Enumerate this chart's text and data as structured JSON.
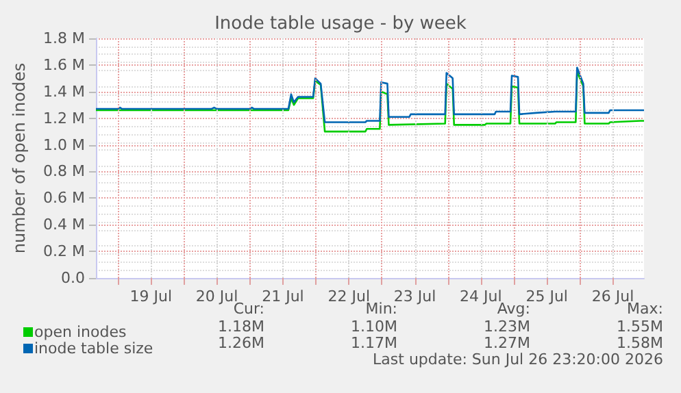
{
  "chart_data": {
    "type": "line",
    "title": "Inode table usage - by week",
    "ylabel": "number of open inodes",
    "xlim": [
      "2026-07-18T16:00",
      "2026-07-26T23:20"
    ],
    "xticks": [
      {
        "value": "2026-07-19T12:00",
        "label": "19 Jul"
      },
      {
        "value": "2026-07-20T12:00",
        "label": "20 Jul"
      },
      {
        "value": "2026-07-21T12:00",
        "label": "21 Jul"
      },
      {
        "value": "2026-07-22T12:00",
        "label": "22 Jul"
      },
      {
        "value": "2026-07-23T12:00",
        "label": "23 Jul"
      },
      {
        "value": "2026-07-24T12:00",
        "label": "24 Jul"
      },
      {
        "value": "2026-07-25T12:00",
        "label": "25 Jul"
      },
      {
        "value": "2026-07-26T12:00",
        "label": "26 Jul"
      },
      {
        "value": "2026-07-19T00:00",
        "label": null
      },
      {
        "value": "2026-07-20T00:00",
        "label": null
      },
      {
        "value": "2026-07-21T00:00",
        "label": null
      },
      {
        "value": "2026-07-22T00:00",
        "label": null
      },
      {
        "value": "2026-07-23T00:00",
        "label": null
      },
      {
        "value": "2026-07-24T00:00",
        "label": null
      },
      {
        "value": "2026-07-25T00:00",
        "label": null
      },
      {
        "value": "2026-07-26T00:00",
        "label": null
      }
    ],
    "ylim": [
      0,
      1.8
    ],
    "yticks": [
      {
        "value": 0,
        "label": "0.0"
      },
      {
        "value": 0.2,
        "label": "0.2 M"
      },
      {
        "value": 0.4,
        "label": "0.4 M"
      },
      {
        "value": 0.6,
        "label": "0.6 M"
      },
      {
        "value": 0.8,
        "label": "0.8 M"
      },
      {
        "value": 1.0,
        "label": "1.0 M"
      },
      {
        "value": 1.2,
        "label": "1.2 M"
      },
      {
        "value": 1.4,
        "label": "1.4 M"
      },
      {
        "value": 1.6,
        "label": "1.6 M"
      },
      {
        "value": 1.8,
        "label": "1.8 M"
      }
    ],
    "grid": true,
    "legend": "bottom left",
    "line_style": "solid",
    "marker": "none",
    "series": [
      {
        "name": "open inodes",
        "color": "#00cc00",
        "x": [
          "2026-07-18T16:00",
          "2026-07-21T14:00",
          "2026-07-21T15:00",
          "2026-07-21T16:00",
          "2026-07-21T17:30",
          "2026-07-21T23:00",
          "2026-07-21T23:45",
          "2026-07-22T01:45",
          "2026-07-22T03:15",
          "2026-07-22T18:00",
          "2026-07-22T18:30",
          "2026-07-22T23:15",
          "2026-07-22T23:45",
          "2026-07-23T02:00",
          "2026-07-23T02:30",
          "2026-07-23T23:00",
          "2026-07-23T23:30",
          "2026-07-24T01:45",
          "2026-07-24T02:15",
          "2026-07-24T13:30",
          "2026-07-24T14:00",
          "2026-07-24T22:45",
          "2026-07-24T23:15",
          "2026-07-25T01:30",
          "2026-07-25T02:00",
          "2026-07-25T15:00",
          "2026-07-25T15:30",
          "2026-07-25T22:30",
          "2026-07-25T23:00",
          "2026-07-26T01:15",
          "2026-07-26T01:45",
          "2026-07-26T10:30",
          "2026-07-26T11:00",
          "2026-07-26T22:00",
          "2026-07-26T23:20"
        ],
        "values": [
          1.26,
          1.26,
          1.35,
          1.3,
          1.35,
          1.35,
          1.48,
          1.45,
          1.1,
          1.1,
          1.12,
          1.12,
          1.4,
          1.38,
          1.15,
          1.16,
          1.46,
          1.42,
          1.15,
          1.15,
          1.16,
          1.16,
          1.44,
          1.43,
          1.16,
          1.16,
          1.17,
          1.17,
          1.55,
          1.44,
          1.16,
          1.16,
          1.17,
          1.18,
          1.18
        ]
      },
      {
        "name": "inode table size",
        "color": "#0066b3",
        "x": [
          "2026-07-18T16:00",
          "2026-07-19T00:00",
          "2026-07-19T00:45",
          "2026-07-19T01:30",
          "2026-07-20T10:00",
          "2026-07-20T11:00",
          "2026-07-20T12:00",
          "2026-07-21T00:00",
          "2026-07-21T00:45",
          "2026-07-21T01:30",
          "2026-07-21T14:00",
          "2026-07-21T15:00",
          "2026-07-21T16:00",
          "2026-07-21T17:30",
          "2026-07-21T23:00",
          "2026-07-21T23:45",
          "2026-07-22T01:45",
          "2026-07-22T03:15",
          "2026-07-22T18:00",
          "2026-07-22T18:30",
          "2026-07-22T23:15",
          "2026-07-22T23:45",
          "2026-07-23T02:00",
          "2026-07-23T02:30",
          "2026-07-23T10:00",
          "2026-07-23T10:30",
          "2026-07-23T23:00",
          "2026-07-23T23:30",
          "2026-07-24T01:45",
          "2026-07-24T02:15",
          "2026-07-24T17:00",
          "2026-07-24T17:30",
          "2026-07-24T22:45",
          "2026-07-24T23:15",
          "2026-07-25T01:30",
          "2026-07-25T02:00",
          "2026-07-25T08:00",
          "2026-07-25T15:00",
          "2026-07-25T22:30",
          "2026-07-25T23:00",
          "2026-07-26T01:15",
          "2026-07-26T01:45",
          "2026-07-26T10:30",
          "2026-07-26T11:00",
          "2026-07-26T23:20"
        ],
        "values": [
          1.27,
          1.27,
          1.28,
          1.27,
          1.27,
          1.28,
          1.27,
          1.27,
          1.28,
          1.27,
          1.27,
          1.38,
          1.32,
          1.36,
          1.36,
          1.5,
          1.46,
          1.17,
          1.17,
          1.18,
          1.18,
          1.47,
          1.46,
          1.21,
          1.21,
          1.23,
          1.23,
          1.54,
          1.5,
          1.23,
          1.23,
          1.25,
          1.25,
          1.52,
          1.51,
          1.23,
          1.24,
          1.25,
          1.25,
          1.58,
          1.46,
          1.24,
          1.24,
          1.26,
          1.26
        ]
      }
    ],
    "annotations": [
      "Cur:",
      "Min:",
      "Avg:",
      "Max:",
      "1.18M",
      "1.10M",
      "1.23M",
      "1.55M",
      "1.26M",
      "1.17M",
      "1.27M",
      "1.58M",
      "Last update: Sun Jul 26 23:20:00 2026"
    ]
  }
}
